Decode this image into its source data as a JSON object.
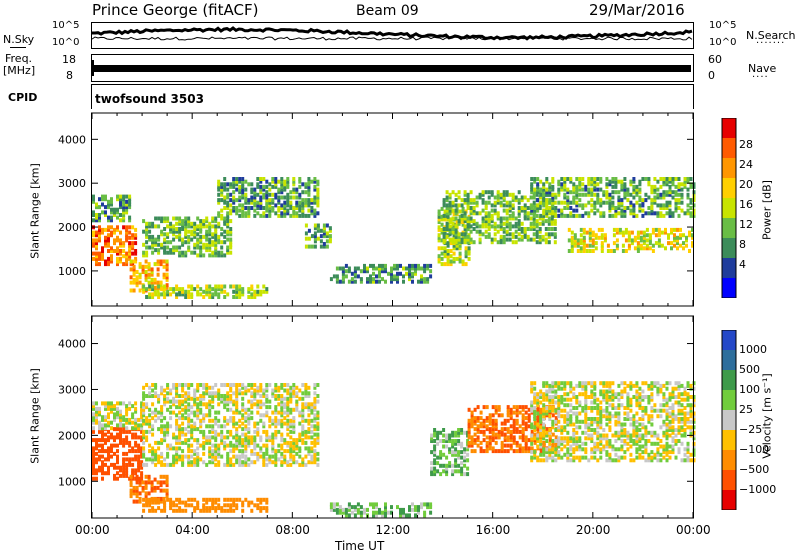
{
  "header": {
    "station": "Prince George (fitACF)",
    "beam": "Beam 09",
    "date": "29/Mar/2016"
  },
  "nsky_panel": {
    "left_label": "N.Sky",
    "right_label": "N.Search",
    "right_dots": "·······",
    "tick_top_left": "10^5",
    "tick_bottom_left": "10^0",
    "tick_top_right": "10^5",
    "tick_bottom_right": "10^0"
  },
  "freq_panel": {
    "left_label_line1": "Freq.",
    "left_label_line2": "[MHz]",
    "right_label": "Nave",
    "right_dots": "····",
    "tick_top_left": "18",
    "tick_bottom_left": "8",
    "tick_top_right": "60",
    "tick_bottom_right": "0"
  },
  "cpid_panel": {
    "left_label": "CPID",
    "text": "twofsound 3503"
  },
  "x_axis": {
    "title": "Time UT",
    "ticks": [
      "00:00",
      "04:00",
      "08:00",
      "12:00",
      "16:00",
      "20:00",
      "00:00"
    ],
    "range_hours": [
      0,
      24
    ]
  },
  "power_colorbar": {
    "title": "Power [dB]",
    "labels": [
      "28",
      "24",
      "20",
      "16",
      "12",
      "8",
      "4"
    ],
    "colors": [
      "#e60000",
      "#ff5a00",
      "#ff9600",
      "#ffcf00",
      "#c8e400",
      "#69bd45",
      "#3c8c5a",
      "#1f3c9c",
      "#0000ff"
    ]
  },
  "velocity_colorbar": {
    "title": "Velocity [m s⁻¹]",
    "labels": [
      "1000",
      "500",
      "100",
      "25",
      "−25",
      "−100",
      "−500",
      "−1000"
    ],
    "colors": [
      "#2448c8",
      "#2e6e9c",
      "#3e9a4a",
      "#71cc3c",
      "#c8c8c8",
      "#ffc000",
      "#ff8c00",
      "#ff5000",
      "#e60000"
    ]
  },
  "chart_data": [
    {
      "type": "heatmap",
      "name": "power",
      "ylabel": "Slant Range [km]",
      "yticks": [
        1000,
        2000,
        3000,
        4000
      ],
      "ylim": [
        200,
        4600
      ],
      "xlim": [
        0,
        24
      ],
      "zlabel": "Power [dB]",
      "zlim": [
        0,
        32
      ],
      "echo_regions": [
        {
          "t_start": 0.0,
          "t_end": 1.8,
          "r_min": 1200,
          "r_max": 2100,
          "level_db": 26
        },
        {
          "t_start": 0.0,
          "t_end": 1.5,
          "r_min": 2200,
          "r_max": 2800,
          "level_db": 10
        },
        {
          "t_start": 1.5,
          "t_end": 3.0,
          "r_min": 600,
          "r_max": 1300,
          "level_db": 22
        },
        {
          "t_start": 2.0,
          "t_end": 7.0,
          "r_min": 450,
          "r_max": 700,
          "level_db": 14
        },
        {
          "t_start": 2.0,
          "t_end": 5.5,
          "r_min": 1400,
          "r_max": 2300,
          "level_db": 12
        },
        {
          "t_start": 5.0,
          "t_end": 9.0,
          "r_min": 2300,
          "r_max": 3200,
          "level_db": 10
        },
        {
          "t_start": 8.5,
          "t_end": 9.5,
          "r_min": 1600,
          "r_max": 2100,
          "level_db": 10
        },
        {
          "t_start": 9.5,
          "t_end": 13.5,
          "r_min": 800,
          "r_max": 1200,
          "level_db": 9
        },
        {
          "t_start": 13.8,
          "t_end": 15.0,
          "r_min": 1200,
          "r_max": 2500,
          "level_db": 14
        },
        {
          "t_start": 14.0,
          "t_end": 18.5,
          "r_min": 1700,
          "r_max": 2900,
          "level_db": 12
        },
        {
          "t_start": 17.5,
          "t_end": 24.0,
          "r_min": 2300,
          "r_max": 3200,
          "level_db": 11
        },
        {
          "t_start": 19.0,
          "t_end": 24.0,
          "r_min": 1500,
          "r_max": 2000,
          "level_db": 17
        }
      ]
    },
    {
      "type": "heatmap",
      "name": "velocity",
      "ylabel": "Slant Range [km]",
      "yticks": [
        1000,
        2000,
        3000,
        4000
      ],
      "ylim": [
        200,
        4600
      ],
      "xlim": [
        0,
        24
      ],
      "zlabel": "Velocity [m s⁻¹]",
      "zlim": [
        -1000,
        1000
      ],
      "echo_regions": [
        {
          "t_start": 0.0,
          "t_end": 2.0,
          "r_min": 1100,
          "r_max": 2200,
          "vel": -700
        },
        {
          "t_start": 0.0,
          "t_end": 2.0,
          "r_min": 2200,
          "r_max": 2800,
          "vel": 0
        },
        {
          "t_start": 1.5,
          "t_end": 3.0,
          "r_min": 600,
          "r_max": 1200,
          "vel": -500
        },
        {
          "t_start": 2.0,
          "t_end": 7.0,
          "r_min": 400,
          "r_max": 700,
          "vel": -200
        },
        {
          "t_start": 2.0,
          "t_end": 9.0,
          "r_min": 1400,
          "r_max": 3200,
          "vel": 0
        },
        {
          "t_start": 9.5,
          "t_end": 13.5,
          "r_min": 300,
          "r_max": 600,
          "vel": 80
        },
        {
          "t_start": 13.5,
          "t_end": 15.0,
          "r_min": 1200,
          "r_max": 2200,
          "vel": 90
        },
        {
          "t_start": 15.0,
          "t_end": 18.5,
          "r_min": 1700,
          "r_max": 2700,
          "vel": -500
        },
        {
          "t_start": 17.5,
          "t_end": 24.0,
          "r_min": 1500,
          "r_max": 3200,
          "vel": 0
        }
      ]
    }
  ]
}
